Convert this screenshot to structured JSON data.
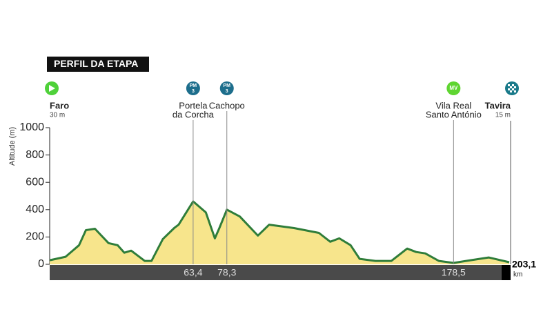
{
  "chart_data": {
    "type": "profile",
    "title": "PERFIL DA ETAPA",
    "y_label": "Altitude (m)",
    "x": [
      0,
      7,
      13,
      16,
      20,
      26,
      30,
      33,
      36,
      42,
      45,
      50,
      55,
      57,
      60,
      63.4,
      69,
      73,
      75,
      78.3,
      84,
      92,
      97,
      108,
      119,
      124,
      128,
      133,
      137,
      144,
      151,
      158,
      162,
      166,
      172,
      178.5,
      186,
      194,
      203.1
    ],
    "values": [
      30,
      55,
      140,
      250,
      260,
      155,
      140,
      85,
      100,
      25,
      25,
      185,
      265,
      290,
      370,
      460,
      380,
      190,
      265,
      400,
      350,
      210,
      290,
      265,
      230,
      165,
      190,
      140,
      40,
      25,
      25,
      115,
      90,
      80,
      25,
      10,
      30,
      50,
      15
    ],
    "xlim": [
      0,
      203.1
    ],
    "ylim": [
      0,
      1000
    ],
    "yticks": [
      0,
      200,
      400,
      600,
      800,
      1000
    ],
    "fill_color": "#f7e58c",
    "line_color": "#2f7d3a",
    "places": [
      {
        "name": [
          "Faro"
        ],
        "altitude": "30 m",
        "km": 0
      },
      {
        "name": [
          "Portela",
          "da Corcha"
        ],
        "km": {
          "value": 63.4,
          "label": "63,4"
        },
        "badge": [
          "PM",
          "3"
        ]
      },
      {
        "name": [
          "Cachopo"
        ],
        "km": {
          "value": 78.3,
          "label": "78,3"
        },
        "badge": [
          "PM",
          "3"
        ]
      },
      {
        "name": [
          "Vila Real",
          "Santo António"
        ],
        "km": {
          "value": 178.5,
          "label": "178,5"
        },
        "badge": [
          "MV"
        ]
      },
      {
        "name": [
          "Tavira"
        ],
        "altitude": "15 m",
        "km": {
          "value": 203.1,
          "label": "203,1"
        }
      }
    ],
    "distance_unit": "km"
  }
}
